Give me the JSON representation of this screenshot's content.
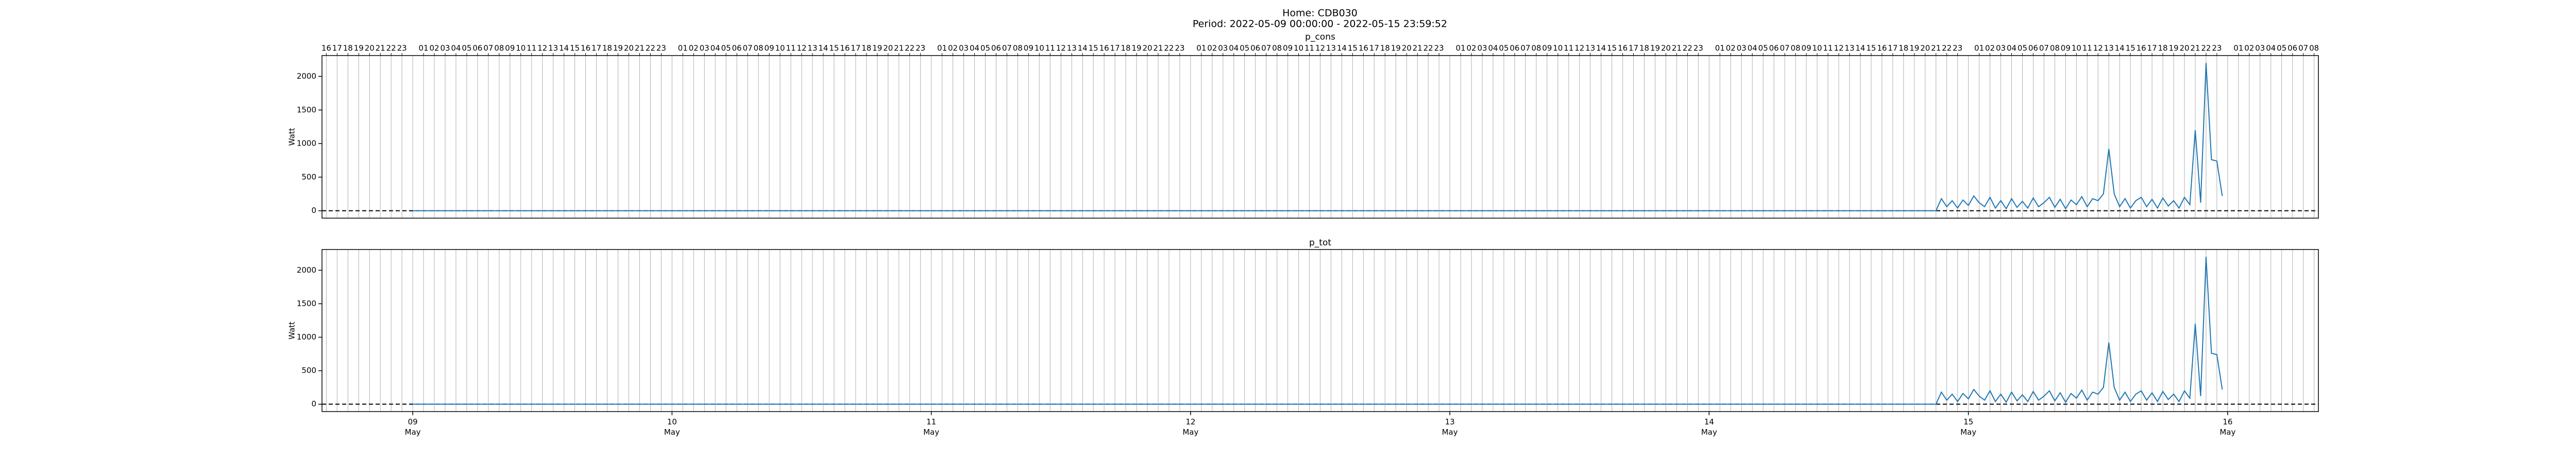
{
  "title": "Home: CDB030",
  "subtitle": "Period: 2022-05-09 00:00:00 - 2022-05-15 23:59:52",
  "chart_data": {
    "type": "line",
    "ylabel": "Watt",
    "grid": true,
    "hline": 0,
    "xlim": [
      "2022-05-08 15:36",
      "2022-05-16 08:24"
    ],
    "ylim": [
      -110,
      2310
    ],
    "yticks": [
      0,
      500,
      1000,
      1500,
      2000
    ],
    "xticks": [
      {
        "value": "2022-05-09 00:00",
        "label": "09\nMay"
      },
      {
        "value": "2022-05-10 00:00",
        "label": "10\nMay"
      },
      {
        "value": "2022-05-11 00:00",
        "label": "11\nMay"
      },
      {
        "value": "2022-05-12 00:00",
        "label": "12\nMay"
      },
      {
        "value": "2022-05-13 00:00",
        "label": "13\nMay"
      },
      {
        "value": "2022-05-14 00:00",
        "label": "14\nMay"
      },
      {
        "value": "2022-05-15 00:00",
        "label": "15\nMay"
      },
      {
        "value": "2022-05-16 00:00",
        "label": "16\nMay"
      }
    ],
    "xticks_minor": [
      {
        "value": "2022-05-08 16:00",
        "label": "16"
      },
      {
        "value": "2022-05-08 17:00",
        "label": "17"
      },
      {
        "value": "2022-05-08 18:00",
        "label": "18"
      },
      {
        "value": "2022-05-08 19:00",
        "label": "19"
      },
      {
        "value": "2022-05-08 20:00",
        "label": "20"
      },
      {
        "value": "2022-05-08 21:00",
        "label": "21"
      },
      {
        "value": "2022-05-08 22:00",
        "label": "22"
      },
      {
        "value": "2022-05-08 23:00",
        "label": "23"
      },
      {
        "value": "2022-05-09 01:00",
        "label": "01"
      },
      {
        "value": "2022-05-09 02:00",
        "label": "02"
      },
      {
        "value": "2022-05-09 03:00",
        "label": "03"
      },
      {
        "value": "2022-05-09 04:00",
        "label": "04"
      },
      {
        "value": "2022-05-09 05:00",
        "label": "05"
      },
      {
        "value": "2022-05-09 06:00",
        "label": "06"
      },
      {
        "value": "2022-05-09 07:00",
        "label": "07"
      },
      {
        "value": "2022-05-09 08:00",
        "label": "08"
      },
      {
        "value": "2022-05-09 09:00",
        "label": "09"
      },
      {
        "value": "2022-05-09 10:00",
        "label": "10"
      },
      {
        "value": "2022-05-09 11:00",
        "label": "11"
      },
      {
        "value": "2022-05-09 12:00",
        "label": "12"
      },
      {
        "value": "2022-05-09 13:00",
        "label": "13"
      },
      {
        "value": "2022-05-09 14:00",
        "label": "14"
      },
      {
        "value": "2022-05-09 15:00",
        "label": "15"
      },
      {
        "value": "2022-05-09 16:00",
        "label": "16"
      },
      {
        "value": "2022-05-09 17:00",
        "label": "17"
      },
      {
        "value": "2022-05-09 18:00",
        "label": "18"
      },
      {
        "value": "2022-05-09 19:00",
        "label": "19"
      },
      {
        "value": "2022-05-09 20:00",
        "label": "20"
      },
      {
        "value": "2022-05-09 21:00",
        "label": "21"
      },
      {
        "value": "2022-05-09 22:00",
        "label": "22"
      },
      {
        "value": "2022-05-09 23:00",
        "label": "23"
      },
      {
        "value": "2022-05-10 01:00",
        "label": "01"
      },
      {
        "value": "2022-05-10 02:00",
        "label": "02"
      },
      {
        "value": "2022-05-10 03:00",
        "label": "03"
      },
      {
        "value": "2022-05-10 04:00",
        "label": "04"
      },
      {
        "value": "2022-05-10 05:00",
        "label": "05"
      },
      {
        "value": "2022-05-10 06:00",
        "label": "06"
      },
      {
        "value": "2022-05-10 07:00",
        "label": "07"
      },
      {
        "value": "2022-05-10 08:00",
        "label": "08"
      },
      {
        "value": "2022-05-10 09:00",
        "label": "09"
      },
      {
        "value": "2022-05-10 10:00",
        "label": "10"
      },
      {
        "value": "2022-05-10 11:00",
        "label": "11"
      },
      {
        "value": "2022-05-10 12:00",
        "label": "12"
      },
      {
        "value": "2022-05-10 13:00",
        "label": "13"
      },
      {
        "value": "2022-05-10 14:00",
        "label": "14"
      },
      {
        "value": "2022-05-10 15:00",
        "label": "15"
      },
      {
        "value": "2022-05-10 16:00",
        "label": "16"
      },
      {
        "value": "2022-05-10 17:00",
        "label": "17"
      },
      {
        "value": "2022-05-10 18:00",
        "label": "18"
      },
      {
        "value": "2022-05-10 19:00",
        "label": "19"
      },
      {
        "value": "2022-05-10 20:00",
        "label": "20"
      },
      {
        "value": "2022-05-10 21:00",
        "label": "21"
      },
      {
        "value": "2022-05-10 22:00",
        "label": "22"
      },
      {
        "value": "2022-05-10 23:00",
        "label": "23"
      },
      {
        "value": "2022-05-11 01:00",
        "label": "01"
      },
      {
        "value": "2022-05-11 02:00",
        "label": "02"
      },
      {
        "value": "2022-05-11 03:00",
        "label": "03"
      },
      {
        "value": "2022-05-11 04:00",
        "label": "04"
      },
      {
        "value": "2022-05-11 05:00",
        "label": "05"
      },
      {
        "value": "2022-05-11 06:00",
        "label": "06"
      },
      {
        "value": "2022-05-11 07:00",
        "label": "07"
      },
      {
        "value": "2022-05-11 08:00",
        "label": "08"
      },
      {
        "value": "2022-05-11 09:00",
        "label": "09"
      },
      {
        "value": "2022-05-11 10:00",
        "label": "10"
      },
      {
        "value": "2022-05-11 11:00",
        "label": "11"
      },
      {
        "value": "2022-05-11 12:00",
        "label": "12"
      },
      {
        "value": "2022-05-11 13:00",
        "label": "13"
      },
      {
        "value": "2022-05-11 14:00",
        "label": "14"
      },
      {
        "value": "2022-05-11 15:00",
        "label": "15"
      },
      {
        "value": "2022-05-11 16:00",
        "label": "16"
      },
      {
        "value": "2022-05-11 17:00",
        "label": "17"
      },
      {
        "value": "2022-05-11 18:00",
        "label": "18"
      },
      {
        "value": "2022-05-11 19:00",
        "label": "19"
      },
      {
        "value": "2022-05-11 20:00",
        "label": "20"
      },
      {
        "value": "2022-05-11 21:00",
        "label": "21"
      },
      {
        "value": "2022-05-11 22:00",
        "label": "22"
      },
      {
        "value": "2022-05-11 23:00",
        "label": "23"
      },
      {
        "value": "2022-05-12 01:00",
        "label": "01"
      },
      {
        "value": "2022-05-12 02:00",
        "label": "02"
      },
      {
        "value": "2022-05-12 03:00",
        "label": "03"
      },
      {
        "value": "2022-05-12 04:00",
        "label": "04"
      },
      {
        "value": "2022-05-12 05:00",
        "label": "05"
      },
      {
        "value": "2022-05-12 06:00",
        "label": "06"
      },
      {
        "value": "2022-05-12 07:00",
        "label": "07"
      },
      {
        "value": "2022-05-12 08:00",
        "label": "08"
      },
      {
        "value": "2022-05-12 09:00",
        "label": "09"
      },
      {
        "value": "2022-05-12 10:00",
        "label": "10"
      },
      {
        "value": "2022-05-12 11:00",
        "label": "11"
      },
      {
        "value": "2022-05-12 12:00",
        "label": "12"
      },
      {
        "value": "2022-05-12 13:00",
        "label": "13"
      },
      {
        "value": "2022-05-12 14:00",
        "label": "14"
      },
      {
        "value": "2022-05-12 15:00",
        "label": "15"
      },
      {
        "value": "2022-05-12 16:00",
        "label": "16"
      },
      {
        "value": "2022-05-12 17:00",
        "label": "17"
      },
      {
        "value": "2022-05-12 18:00",
        "label": "18"
      },
      {
        "value": "2022-05-12 19:00",
        "label": "19"
      },
      {
        "value": "2022-05-12 20:00",
        "label": "20"
      },
      {
        "value": "2022-05-12 21:00",
        "label": "21"
      },
      {
        "value": "2022-05-12 22:00",
        "label": "22"
      },
      {
        "value": "2022-05-12 23:00",
        "label": "23"
      },
      {
        "value": "2022-05-13 01:00",
        "label": "01"
      },
      {
        "value": "2022-05-13 02:00",
        "label": "02"
      },
      {
        "value": "2022-05-13 03:00",
        "label": "03"
      },
      {
        "value": "2022-05-13 04:00",
        "label": "04"
      },
      {
        "value": "2022-05-13 05:00",
        "label": "05"
      },
      {
        "value": "2022-05-13 06:00",
        "label": "06"
      },
      {
        "value": "2022-05-13 07:00",
        "label": "07"
      },
      {
        "value": "2022-05-13 08:00",
        "label": "08"
      },
      {
        "value": "2022-05-13 09:00",
        "label": "09"
      },
      {
        "value": "2022-05-13 10:00",
        "label": "10"
      },
      {
        "value": "2022-05-13 11:00",
        "label": "11"
      },
      {
        "value": "2022-05-13 12:00",
        "label": "12"
      },
      {
        "value": "2022-05-13 13:00",
        "label": "13"
      },
      {
        "value": "2022-05-13 14:00",
        "label": "14"
      },
      {
        "value": "2022-05-13 15:00",
        "label": "15"
      },
      {
        "value": "2022-05-13 16:00",
        "label": "16"
      },
      {
        "value": "2022-05-13 17:00",
        "label": "17"
      },
      {
        "value": "2022-05-13 18:00",
        "label": "18"
      },
      {
        "value": "2022-05-13 19:00",
        "label": "19"
      },
      {
        "value": "2022-05-13 20:00",
        "label": "20"
      },
      {
        "value": "2022-05-13 21:00",
        "label": "21"
      },
      {
        "value": "2022-05-13 22:00",
        "label": "22"
      },
      {
        "value": "2022-05-13 23:00",
        "label": "23"
      },
      {
        "value": "2022-05-14 01:00",
        "label": "01"
      },
      {
        "value": "2022-05-14 02:00",
        "label": "02"
      },
      {
        "value": "2022-05-14 03:00",
        "label": "03"
      },
      {
        "value": "2022-05-14 04:00",
        "label": "04"
      },
      {
        "value": "2022-05-14 05:00",
        "label": "05"
      },
      {
        "value": "2022-05-14 06:00",
        "label": "06"
      },
      {
        "value": "2022-05-14 07:00",
        "label": "07"
      },
      {
        "value": "2022-05-14 08:00",
        "label": "08"
      },
      {
        "value": "2022-05-14 09:00",
        "label": "09"
      },
      {
        "value": "2022-05-14 10:00",
        "label": "10"
      },
      {
        "value": "2022-05-14 11:00",
        "label": "11"
      },
      {
        "value": "2022-05-14 12:00",
        "label": "12"
      },
      {
        "value": "2022-05-14 13:00",
        "label": "13"
      },
      {
        "value": "2022-05-14 14:00",
        "label": "14"
      },
      {
        "value": "2022-05-14 15:00",
        "label": "15"
      },
      {
        "value": "2022-05-14 16:00",
        "label": "16"
      },
      {
        "value": "2022-05-14 17:00",
        "label": "17"
      },
      {
        "value": "2022-05-14 18:00",
        "label": "18"
      },
      {
        "value": "2022-05-14 19:00",
        "label": "19"
      },
      {
        "value": "2022-05-14 20:00",
        "label": "20"
      },
      {
        "value": "2022-05-14 21:00",
        "label": "21"
      },
      {
        "value": "2022-05-14 22:00",
        "label": "22"
      },
      {
        "value": "2022-05-14 23:00",
        "label": "23"
      },
      {
        "value": "2022-05-15 01:00",
        "label": "01"
      },
      {
        "value": "2022-05-15 02:00",
        "label": "02"
      },
      {
        "value": "2022-05-15 03:00",
        "label": "03"
      },
      {
        "value": "2022-05-15 04:00",
        "label": "04"
      },
      {
        "value": "2022-05-15 05:00",
        "label": "05"
      },
      {
        "value": "2022-05-15 06:00",
        "label": "06"
      },
      {
        "value": "2022-05-15 07:00",
        "label": "07"
      },
      {
        "value": "2022-05-15 08:00",
        "label": "08"
      },
      {
        "value": "2022-05-15 09:00",
        "label": "09"
      },
      {
        "value": "2022-05-15 10:00",
        "label": "10"
      },
      {
        "value": "2022-05-15 11:00",
        "label": "11"
      },
      {
        "value": "2022-05-15 12:00",
        "label": "12"
      },
      {
        "value": "2022-05-15 13:00",
        "label": "13"
      },
      {
        "value": "2022-05-15 14:00",
        "label": "14"
      },
      {
        "value": "2022-05-15 15:00",
        "label": "15"
      },
      {
        "value": "2022-05-15 16:00",
        "label": "16"
      },
      {
        "value": "2022-05-15 17:00",
        "label": "17"
      },
      {
        "value": "2022-05-15 18:00",
        "label": "18"
      },
      {
        "value": "2022-05-15 19:00",
        "label": "19"
      },
      {
        "value": "2022-05-15 20:00",
        "label": "20"
      },
      {
        "value": "2022-05-15 21:00",
        "label": "21"
      },
      {
        "value": "2022-05-15 22:00",
        "label": "22"
      },
      {
        "value": "2022-05-15 23:00",
        "label": "23"
      },
      {
        "value": "2022-05-16 01:00",
        "label": "01"
      },
      {
        "value": "2022-05-16 02:00",
        "label": "02"
      },
      {
        "value": "2022-05-16 03:00",
        "label": "03"
      },
      {
        "value": "2022-05-16 04:00",
        "label": "04"
      },
      {
        "value": "2022-05-16 05:00",
        "label": "05"
      },
      {
        "value": "2022-05-16 06:00",
        "label": "06"
      },
      {
        "value": "2022-05-16 07:00",
        "label": "07"
      },
      {
        "value": "2022-05-16 08:00",
        "label": "08"
      }
    ],
    "x": [
      "2022-05-09 00:00",
      "2022-05-14 20:30",
      "2022-05-14 21:00",
      "2022-05-14 21:30",
      "2022-05-14 22:00",
      "2022-05-14 22:30",
      "2022-05-14 23:00",
      "2022-05-14 23:30",
      "2022-05-15 00:00",
      "2022-05-15 00:30",
      "2022-05-15 01:00",
      "2022-05-15 01:30",
      "2022-05-15 02:00",
      "2022-05-15 02:30",
      "2022-05-15 03:00",
      "2022-05-15 03:30",
      "2022-05-15 04:00",
      "2022-05-15 04:30",
      "2022-05-15 05:00",
      "2022-05-15 05:30",
      "2022-05-15 06:00",
      "2022-05-15 06:30",
      "2022-05-15 07:00",
      "2022-05-15 07:30",
      "2022-05-15 08:00",
      "2022-05-15 08:30",
      "2022-05-15 09:00",
      "2022-05-15 09:30",
      "2022-05-15 10:00",
      "2022-05-15 10:30",
      "2022-05-15 11:00",
      "2022-05-15 11:30",
      "2022-05-15 12:00",
      "2022-05-15 12:30",
      "2022-05-15 13:00",
      "2022-05-15 13:30",
      "2022-05-15 14:00",
      "2022-05-15 14:30",
      "2022-05-15 15:00",
      "2022-05-15 15:30",
      "2022-05-15 16:00",
      "2022-05-15 16:30",
      "2022-05-15 17:00",
      "2022-05-15 17:30",
      "2022-05-15 18:00",
      "2022-05-15 18:30",
      "2022-05-15 19:00",
      "2022-05-15 19:30",
      "2022-05-15 20:00",
      "2022-05-15 20:30",
      "2022-05-15 21:00",
      "2022-05-15 21:30",
      "2022-05-15 22:00",
      "2022-05-15 22:30",
      "2022-05-15 23:00",
      "2022-05-15 23:30"
    ],
    "subplots": [
      {
        "title": "p_cons",
        "color": "#1f77b4",
        "values": [
          0,
          0,
          0,
          180,
          60,
          150,
          40,
          160,
          80,
          220,
          120,
          60,
          200,
          40,
          150,
          30,
          180,
          50,
          140,
          40,
          190,
          60,
          120,
          200,
          50,
          170,
          30,
          160,
          90,
          210,
          60,
          180,
          150,
          250,
          920,
          250,
          60,
          180,
          40,
          150,
          200,
          60,
          170,
          40,
          190,
          70,
          150,
          40,
          200,
          90,
          1200,
          120,
          2200,
          760,
          740,
          220
        ]
      },
      {
        "title": "p_tot",
        "color": "#1f77b4",
        "values": [
          0,
          0,
          0,
          180,
          60,
          150,
          40,
          160,
          80,
          220,
          120,
          60,
          200,
          40,
          150,
          30,
          180,
          50,
          140,
          40,
          190,
          60,
          120,
          200,
          50,
          170,
          30,
          160,
          90,
          210,
          60,
          180,
          150,
          250,
          920,
          250,
          60,
          180,
          40,
          150,
          200,
          60,
          170,
          40,
          190,
          70,
          150,
          40,
          200,
          90,
          1200,
          120,
          2200,
          760,
          740,
          220
        ]
      }
    ]
  }
}
